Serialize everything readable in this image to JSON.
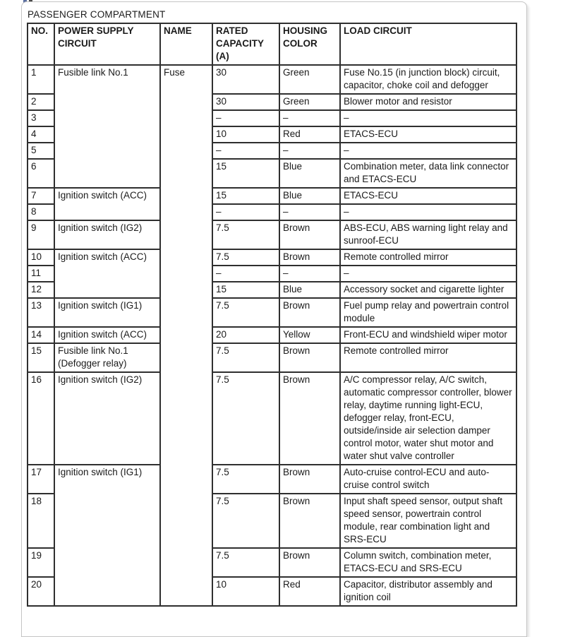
{
  "page": {
    "title": "PASSENGER COMPARTMENT"
  },
  "table": {
    "headers": [
      "NO.",
      "POWER SUPPLY\nCIRCUIT",
      "NAME",
      "RATED\nCAPACITY (A)",
      "HOUSING\nCOLOR",
      "LOAD CIRCUIT"
    ],
    "rows": [
      {
        "no": "1",
        "power": "Fusible link No.1",
        "power_rowspan": 6,
        "name": "Fuse",
        "name_rowspan": 20,
        "capacity": "30",
        "color": "Green",
        "load": "Fuse No.15 (in junction block) circuit, capacitor, choke coil and defogger"
      },
      {
        "no": "2",
        "capacity": "30",
        "color": "Green",
        "load": "Blower motor and resistor"
      },
      {
        "no": "3",
        "capacity": "–",
        "color": "–",
        "load": "–"
      },
      {
        "no": "4",
        "capacity": "10",
        "color": "Red",
        "load": "ETACS-ECU"
      },
      {
        "no": "5",
        "capacity": "–",
        "color": "–",
        "load": "–"
      },
      {
        "no": "6",
        "capacity": "15",
        "color": "Blue",
        "load": "Combination meter, data link connector and ETACS-ECU"
      },
      {
        "no": "7",
        "power": "Ignition switch (ACC)",
        "power_rowspan": 2,
        "capacity": "15",
        "color": "Blue",
        "load": "ETACS-ECU"
      },
      {
        "no": "8",
        "capacity": "–",
        "color": "–",
        "load": "–"
      },
      {
        "no": "9",
        "power": "Ignition switch (IG2)",
        "power_rowspan": 1,
        "capacity": "7.5",
        "color": "Brown",
        "load": "ABS-ECU, ABS warning light relay and sunroof-ECU"
      },
      {
        "no": "10",
        "power": "Ignition switch (ACC)",
        "power_rowspan": 3,
        "capacity": "7.5",
        "color": "Brown",
        "load": "Remote controlled mirror"
      },
      {
        "no": "11",
        "capacity": "–",
        "color": "–",
        "load": "–"
      },
      {
        "no": "12",
        "capacity": "15",
        "color": "Blue",
        "load": "Accessory socket and cigarette lighter"
      },
      {
        "no": "13",
        "power": "Ignition switch (IG1)",
        "power_rowspan": 1,
        "capacity": "7.5",
        "color": "Brown",
        "load": "Fuel pump relay and powertrain control module"
      },
      {
        "no": "14",
        "power": "Ignition switch (ACC)",
        "power_rowspan": 1,
        "capacity": "20",
        "color": "Yellow",
        "load": "Front-ECU and windshield wiper motor"
      },
      {
        "no": "15",
        "power": "Fusible link No.1 (Defogger relay)",
        "power_rowspan": 1,
        "capacity": "7.5",
        "color": "Brown",
        "load": "Remote controlled mirror"
      },
      {
        "no": "16",
        "power": "Ignition switch (IG2)",
        "power_rowspan": 1,
        "capacity": "7.5",
        "color": "Brown",
        "load": "A/C compressor relay, A/C switch, automatic compressor controller, blower relay, daytime running light-ECU, defogger relay, front-ECU, outside/inside air selection damper control motor, water shut motor and water shut valve controller"
      },
      {
        "no": "17",
        "power": "Ignition switch (IG1)",
        "power_rowspan": 4,
        "capacity": "7.5",
        "color": "Brown",
        "load": "Auto-cruise control-ECU and auto-cruise control switch"
      },
      {
        "no": "18",
        "capacity": "7.5",
        "color": "Brown",
        "load": "Input shaft speed sensor, output shaft speed sensor, powertrain control module, rear combination light and SRS-ECU"
      },
      {
        "no": "19",
        "capacity": "7.5",
        "color": "Brown",
        "load": "Column switch, combination meter, ETACS-ECU and SRS-ECU"
      },
      {
        "no": "20",
        "capacity": "10",
        "color": "Red",
        "load": "Capacitor, distributor assembly and ignition coil"
      }
    ]
  }
}
